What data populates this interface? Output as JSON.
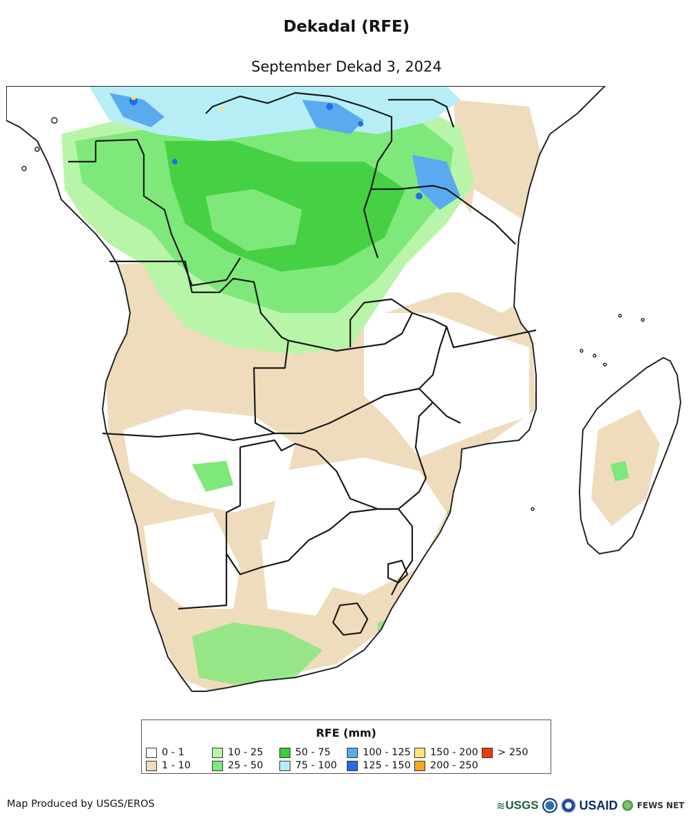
{
  "title": "Dekadal (RFE)",
  "subtitle": "September Dekad 3, 2024",
  "legend": {
    "title": "RFE (mm)",
    "items": [
      {
        "label": "0 - 1",
        "color": "#ffffff"
      },
      {
        "label": "1 - 10",
        "color": "#efdcbc"
      },
      {
        "label": "10 - 25",
        "color": "#b8f5a8"
      },
      {
        "label": "25 - 50",
        "color": "#7fe87a"
      },
      {
        "label": "50 - 75",
        "color": "#3ccc3c"
      },
      {
        "label": "75 - 100",
        "color": "#b7eef5"
      },
      {
        "label": "100 - 125",
        "color": "#5aaaf0"
      },
      {
        "label": "125 - 150",
        "color": "#1e6fe8"
      },
      {
        "label": "150 - 200",
        "color": "#fde27a"
      },
      {
        "label": "200 - 250",
        "color": "#f5a623"
      },
      {
        "label": "> 250",
        "color": "#e83a0a"
      }
    ]
  },
  "credit": "Map Produced by USGS/EROS",
  "logos": {
    "usgs": "USGS",
    "usaid": "USAID",
    "fewsnet": "FEWS NET"
  }
}
